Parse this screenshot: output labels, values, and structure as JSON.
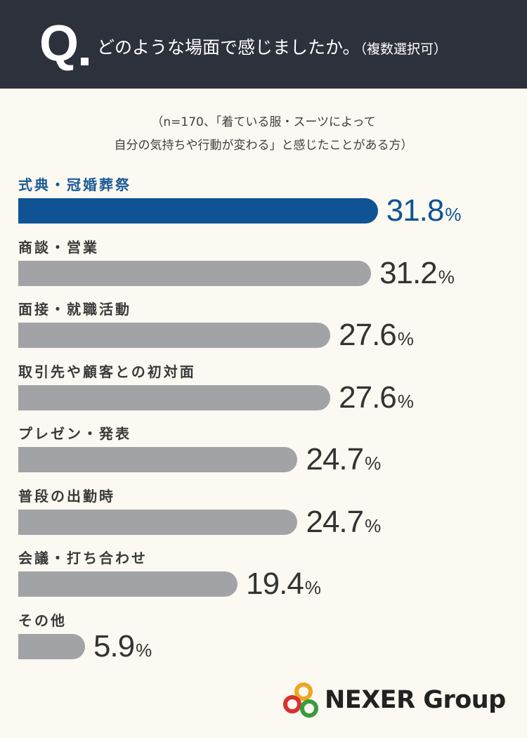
{
  "header": {
    "q_letter": "Q",
    "question": "どのような場面で感じましたか。",
    "question_note": "（複数選択可）"
  },
  "sample_note": {
    "line1": "（n=170、「着ている服・スーツによって",
    "line2": "自分の気持ちや行動が変わる」と感じたことがある方）"
  },
  "colors": {
    "highlight_bar": "#0f5395",
    "default_bar": "#a2a3a7",
    "header_bg": "#2d313c",
    "background": "#fbf9f1"
  },
  "chart_data": {
    "type": "bar",
    "orientation": "horizontal",
    "title": "どのような場面で感じましたか。（複数選択可）",
    "subtitle": "（n=170、「着ている服・スーツによって自分の気持ちや行動が変わる」と感じたことがある方）",
    "categories": [
      "式典・冠婚葬祭",
      "商談・営業",
      "面接・就職活動",
      "取引先や顧客との初対面",
      "プレゼン・発表",
      "普段の出勤時",
      "会議・打ち合わせ",
      "その他"
    ],
    "values": [
      31.8,
      31.2,
      27.6,
      27.6,
      24.7,
      24.7,
      19.4,
      5.9
    ],
    "value_labels": [
      "31.8",
      "31.2",
      "27.6",
      "27.6",
      "24.7",
      "24.7",
      "19.4",
      "5.9"
    ],
    "unit": "%",
    "highlight_index": 0,
    "xlim": [
      0,
      43.5
    ],
    "grid": false,
    "legend": "none"
  },
  "logo": {
    "text": "NEXER Group",
    "ring_colors": [
      "#f2a51f",
      "#d8322e",
      "#3a9a3f"
    ]
  }
}
